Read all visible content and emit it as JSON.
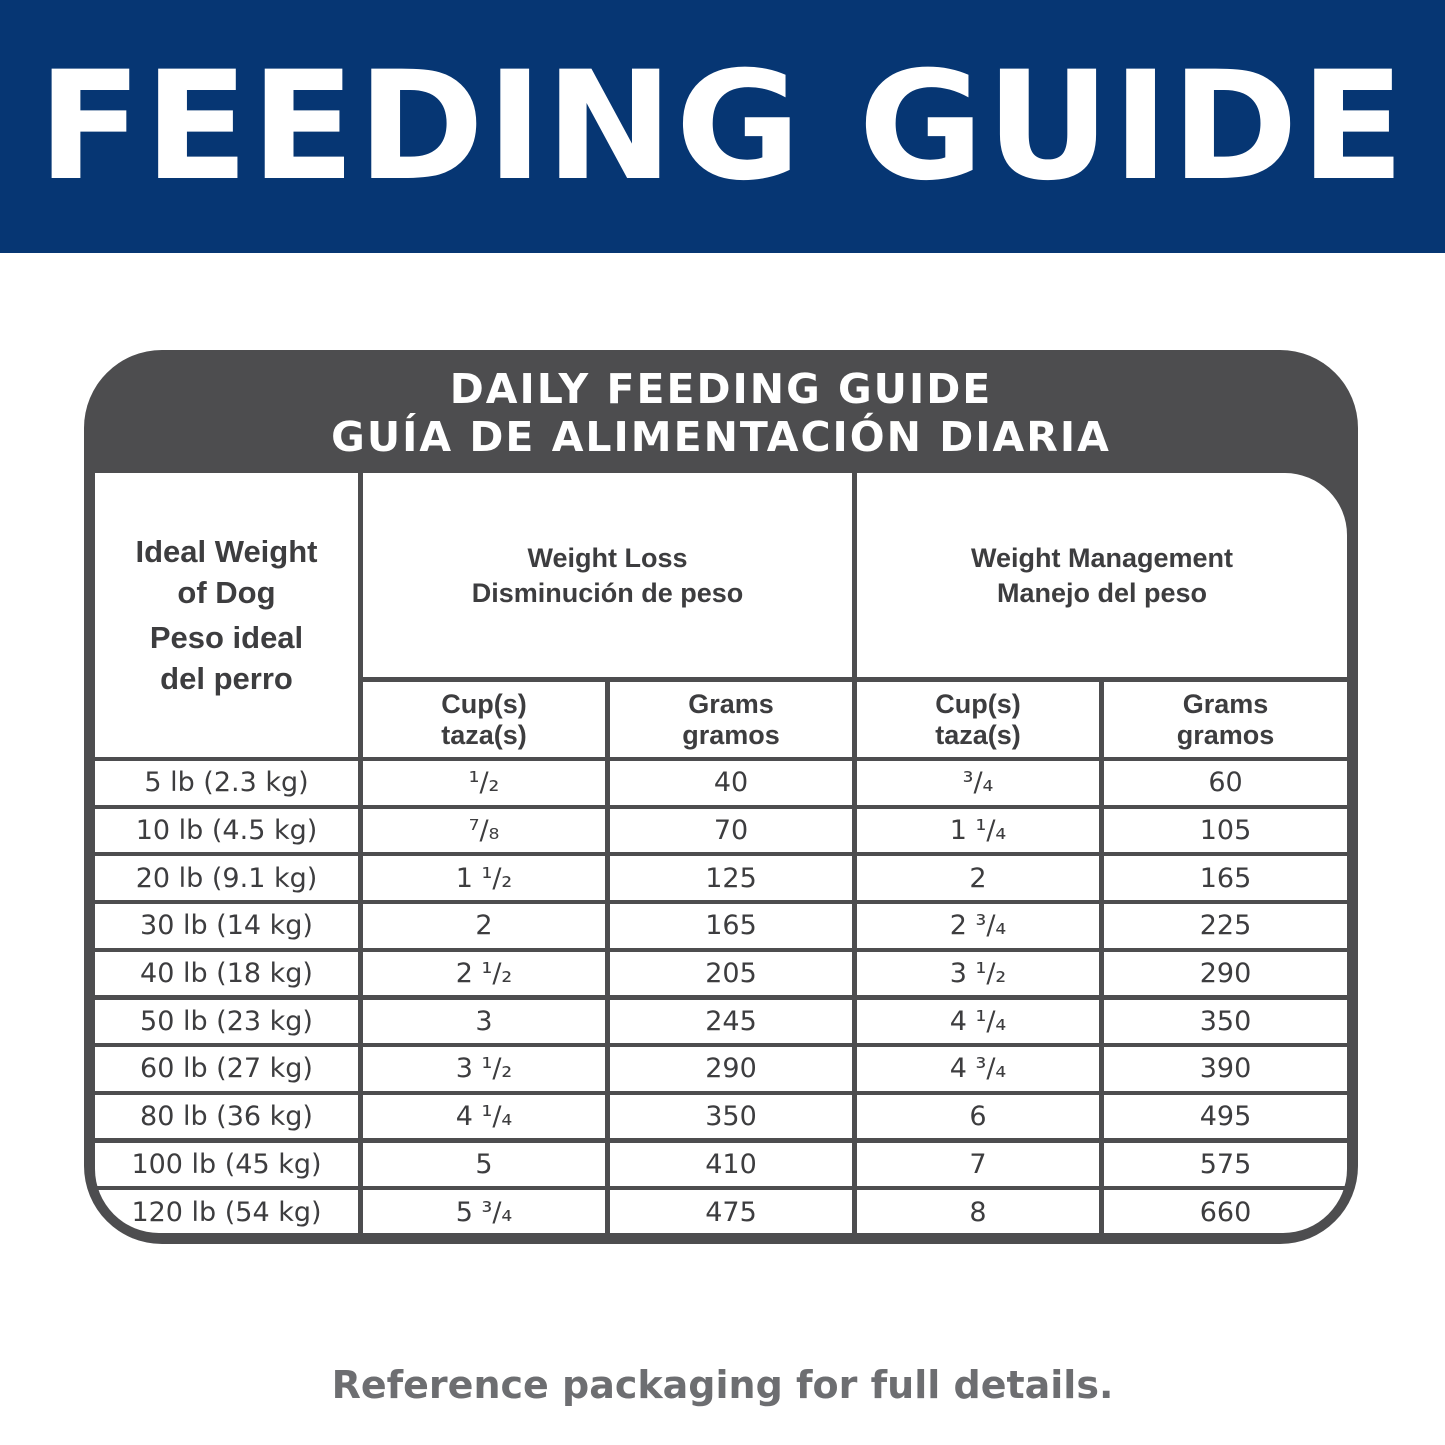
{
  "banner": {
    "title": "FEEDING GUIDE"
  },
  "card": {
    "title_en": "DAILY FEEDING GUIDE",
    "title_es": "GUÍA DE ALIMENTACIÓN DIARIA"
  },
  "headers": {
    "weight": {
      "line1": "Ideal Weight",
      "line2": "of Dog",
      "line3": "Peso ideal",
      "line4": "del perro"
    },
    "weight_loss": {
      "en": "Weight Loss",
      "es": "Disminución de peso"
    },
    "weight_management": {
      "en": "Weight Management",
      "es": "Manejo del peso"
    },
    "cups": {
      "en": "Cup(s)",
      "es": "taza(s)"
    },
    "grams": {
      "en": "Grams",
      "es": "gramos"
    }
  },
  "rows": [
    {
      "weight": "5 lb (2.3 kg)",
      "loss_cups": "¹/₂",
      "loss_grams": "40",
      "mgmt_cups": "³/₄",
      "mgmt_grams": "60"
    },
    {
      "weight": "10 lb (4.5 kg)",
      "loss_cups": "⁷/₈",
      "loss_grams": "70",
      "mgmt_cups": "1 ¹/₄",
      "mgmt_grams": "105"
    },
    {
      "weight": "20 lb (9.1 kg)",
      "loss_cups": "1 ¹/₂",
      "loss_grams": "125",
      "mgmt_cups": "2",
      "mgmt_grams": "165"
    },
    {
      "weight": "30 lb (14 kg)",
      "loss_cups": "2",
      "loss_grams": "165",
      "mgmt_cups": "2 ³/₄",
      "mgmt_grams": "225"
    },
    {
      "weight": "40 lb (18 kg)",
      "loss_cups": "2 ¹/₂",
      "loss_grams": "205",
      "mgmt_cups": "3 ¹/₂",
      "mgmt_grams": "290"
    },
    {
      "weight": "50 lb (23 kg)",
      "loss_cups": "3",
      "loss_grams": "245",
      "mgmt_cups": "4 ¹/₄",
      "mgmt_grams": "350"
    },
    {
      "weight": "60 lb (27 kg)",
      "loss_cups": "3 ¹/₂",
      "loss_grams": "290",
      "mgmt_cups": "4 ³/₄",
      "mgmt_grams": "390"
    },
    {
      "weight": "80 lb (36 kg)",
      "loss_cups": "4 ¹/₄",
      "loss_grams": "350",
      "mgmt_cups": "6",
      "mgmt_grams": "495"
    },
    {
      "weight": "100 lb (45 kg)",
      "loss_cups": "5",
      "loss_grams": "410",
      "mgmt_cups": "7",
      "mgmt_grams": "575"
    },
    {
      "weight": "120 lb (54 kg)",
      "loss_cups": "5 ³/₄",
      "loss_grams": "475",
      "mgmt_cups": "8",
      "mgmt_grams": "660"
    }
  ],
  "footer": {
    "note": "Reference packaging for full details."
  },
  "colors": {
    "banner": "#063673",
    "card": "#4d4d4f",
    "text": "#3d3d3f",
    "footer_text": "#6d6e71"
  }
}
